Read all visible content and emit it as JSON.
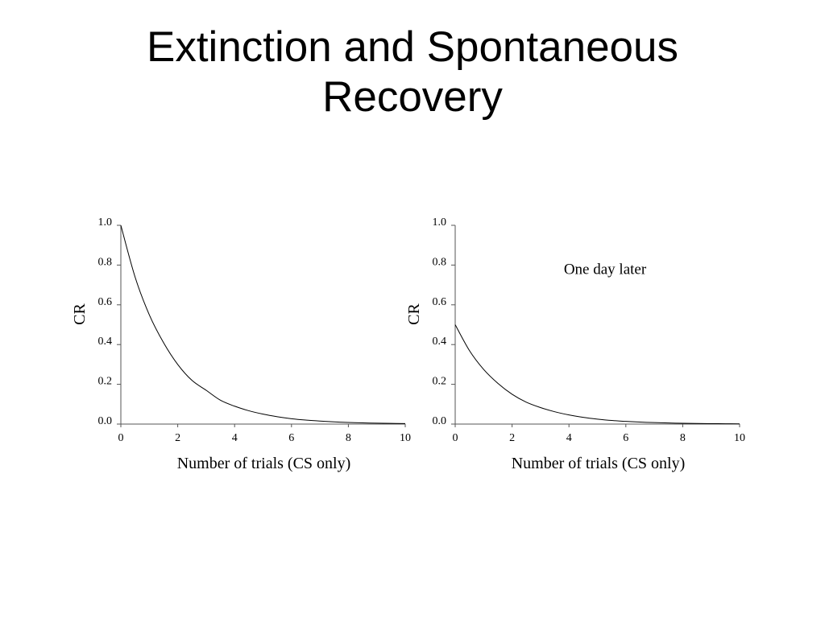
{
  "slide": {
    "title_line1": "Extinction and Spontaneous",
    "title_line2": "Recovery"
  },
  "chart_data": [
    {
      "type": "line",
      "xlabel": "Number of trials (CS only)",
      "ylabel": "CR",
      "xlim": [
        0,
        10
      ],
      "ylim": [
        0,
        1.0
      ],
      "xticks": [
        "0",
        "2",
        "4",
        "6",
        "8",
        "10"
      ],
      "yticks": [
        "0.0",
        "0.2",
        "0.4",
        "0.6",
        "0.8",
        "1.0"
      ],
      "grid": false,
      "annotation": "",
      "series": [
        {
          "x": [
            0,
            0.5,
            1,
            1.5,
            2,
            2.5,
            3,
            3.5,
            4,
            4.5,
            5,
            5.5,
            6,
            6.5,
            7,
            7.5,
            8,
            8.5,
            9,
            9.5,
            10
          ],
          "values": [
            1.0,
            0.74,
            0.55,
            0.41,
            0.3,
            0.22,
            0.17,
            0.12,
            0.09,
            0.067,
            0.05,
            0.037,
            0.027,
            0.02,
            0.015,
            0.011,
            0.008,
            0.006,
            0.0045,
            0.0033,
            0.0025
          ],
          "color": "#000000"
        }
      ]
    },
    {
      "type": "line",
      "xlabel": "Number of trials (CS only)",
      "ylabel": "CR",
      "xlim": [
        0,
        10
      ],
      "ylim": [
        0,
        1.0
      ],
      "xticks": [
        "0",
        "2",
        "4",
        "6",
        "8",
        "10"
      ],
      "yticks": [
        "0.0",
        "0.2",
        "0.4",
        "0.6",
        "0.8",
        "1.0"
      ],
      "grid": false,
      "annotation": "One day later",
      "series": [
        {
          "x": [
            0,
            0.5,
            1,
            1.5,
            2,
            2.5,
            3,
            3.5,
            4,
            4.5,
            5,
            5.5,
            6,
            6.5,
            7,
            7.5,
            8,
            8.5,
            9,
            9.5,
            10
          ],
          "values": [
            0.5,
            0.37,
            0.275,
            0.205,
            0.15,
            0.11,
            0.083,
            0.062,
            0.046,
            0.034,
            0.025,
            0.018,
            0.0135,
            0.01,
            0.0075,
            0.0055,
            0.004,
            0.003,
            0.0022,
            0.0016,
            0.0012
          ],
          "color": "#000000"
        }
      ]
    }
  ]
}
